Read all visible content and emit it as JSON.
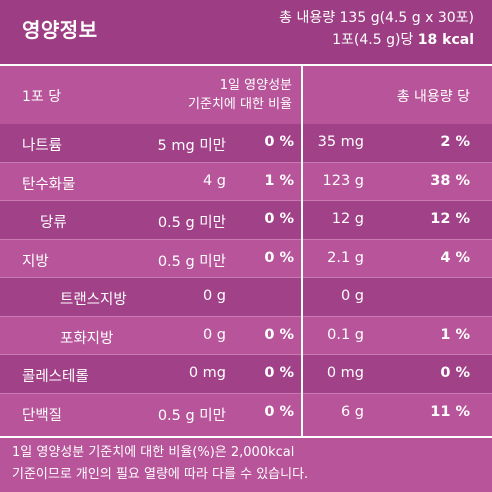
{
  "header": {
    "title": "영양정보",
    "total_line1": "총 내용량 135 g(4.5 g x 30포)",
    "total_line2_prefix": "1포(4.5 g)당",
    "total_line2_kcal": "18 kcal"
  },
  "columns": {
    "per_serving": "1포 당",
    "dv_line1": "1일 영양성분",
    "dv_line2": "기준치에 대한 비율",
    "total_per": "총 내용량 당"
  },
  "rows": [
    {
      "name": "나트륨",
      "amount": "5 mg 미만",
      "pct": "0 %",
      "total": "35 mg",
      "total_pct": "2 %"
    },
    {
      "name": "탄수화물",
      "amount": "4 g",
      "pct": "1 %",
      "total": "123 g",
      "total_pct": "38 %"
    },
    {
      "name": "당류",
      "amount": "0.5 g 미만",
      "pct": "0 %",
      "total": "12 g",
      "total_pct": "12 %"
    },
    {
      "name": "지방",
      "amount": "0.5 g 미만",
      "pct": "0 %",
      "total": "2.1 g",
      "total_pct": "4 %"
    },
    {
      "name": "트랜스지방",
      "amount": "0 g",
      "pct": "",
      "total": "0 g",
      "total_pct": ""
    },
    {
      "name": "포화지방",
      "amount": "0 g",
      "pct": "0 %",
      "total": "0.1 g",
      "total_pct": "1 %"
    },
    {
      "name": "콜레스테롤",
      "amount": "0 mg",
      "pct": "0 %",
      "total": "0 mg",
      "total_pct": "0 %"
    },
    {
      "name": "단백질",
      "amount": "0.5 g 미만",
      "pct": "0 %",
      "total": "6 g",
      "total_pct": "11 %"
    }
  ],
  "footer": {
    "line1": "1일 영양성분 기준치에 대한 비율(%)은 2,000kcal",
    "line2": "기준이므로 개인의 필요 열량에 따라 다를 수 있습니다."
  }
}
